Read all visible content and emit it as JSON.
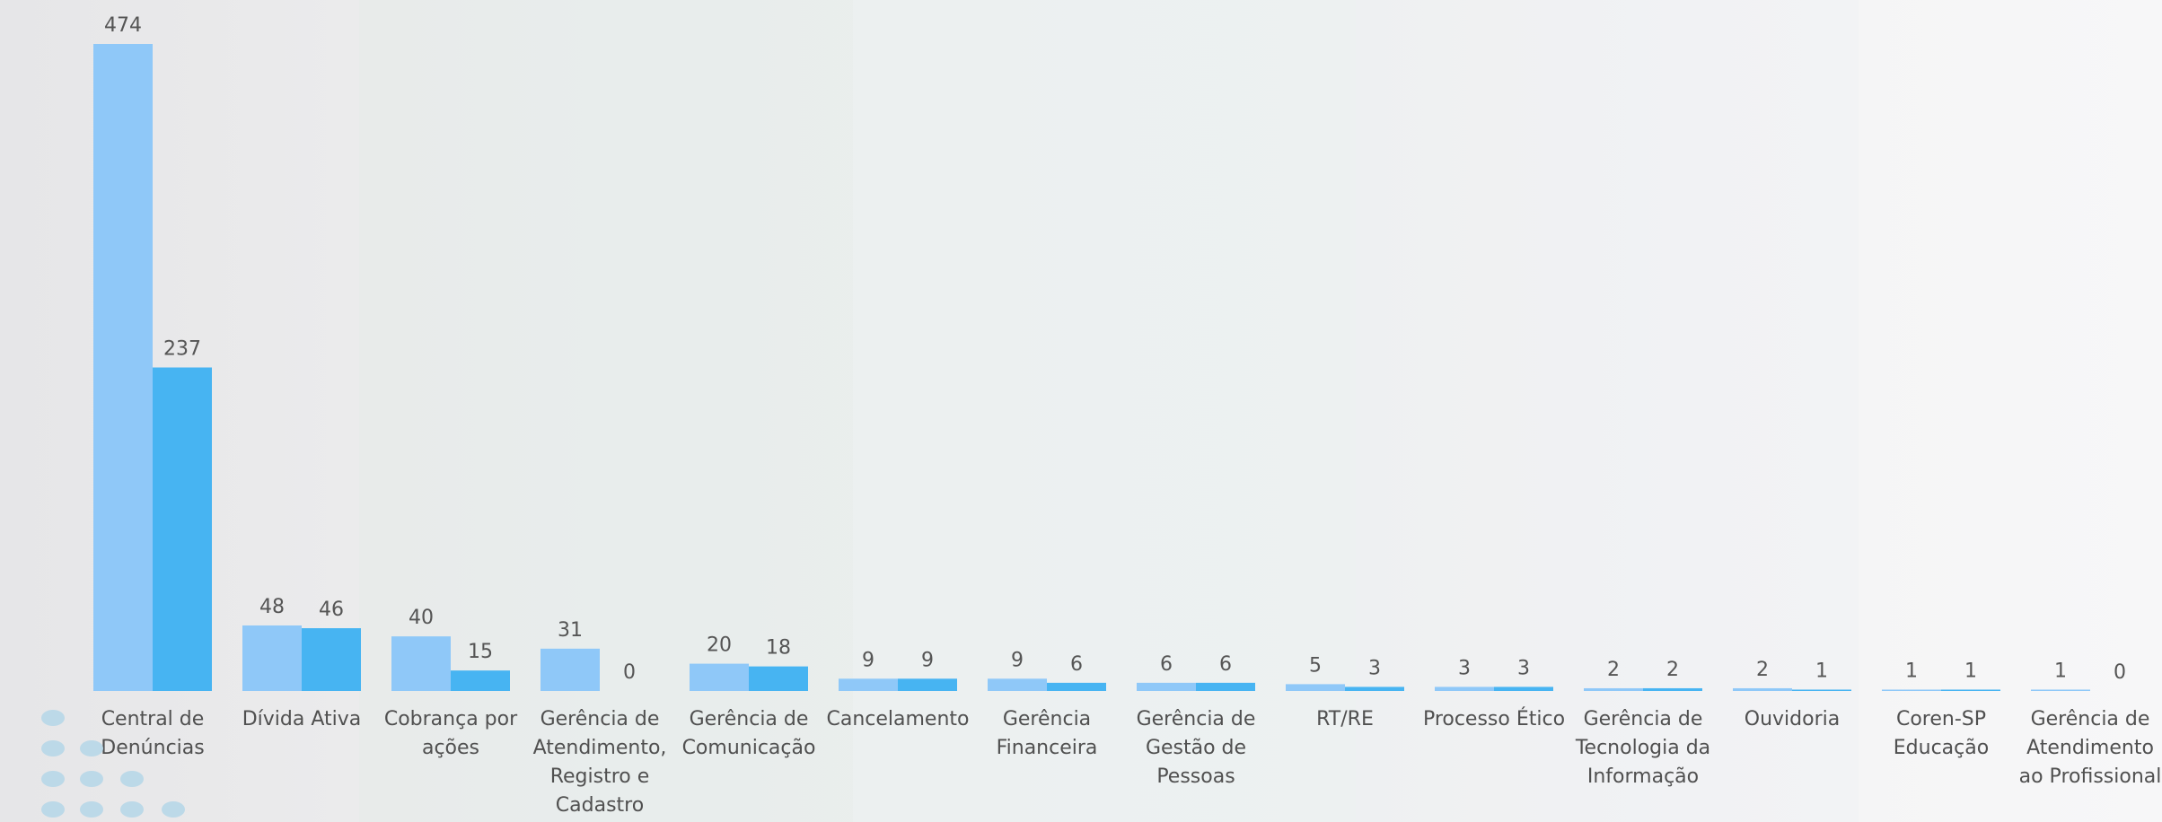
{
  "chart_data": {
    "type": "bar",
    "categories": [
      [
        "Central de",
        "Denúncias"
      ],
      [
        "Dívida Ativa"
      ],
      [
        "Cobrança por",
        "ações"
      ],
      [
        "Gerência de",
        "Atendimento,",
        "Registro e",
        "Cadastro"
      ],
      [
        "Gerência de",
        "Comunicação"
      ],
      [
        "Cancelamento"
      ],
      [
        "Gerência",
        "Financeira"
      ],
      [
        "Gerência de",
        "Gestão de",
        "Pessoas"
      ],
      [
        "RT/RE"
      ],
      [
        "Processo Ético"
      ],
      [
        "Gerência de",
        "Tecnologia da",
        "Informação"
      ],
      [
        "Ouvidoria"
      ],
      [
        "Coren-SP",
        "Educação"
      ],
      [
        "Gerência de",
        "Atendimento",
        "ao Profissional"
      ]
    ],
    "series": [
      {
        "color": "#8fc8f8",
        "values": [
          474,
          48,
          40,
          31,
          20,
          9,
          9,
          6,
          5,
          3,
          2,
          2,
          1,
          1
        ]
      },
      {
        "color": "#47b4f2",
        "values": [
          237,
          46,
          15,
          0,
          18,
          9,
          6,
          6,
          3,
          3,
          2,
          1,
          1,
          0
        ]
      }
    ],
    "ylim": [
      0,
      474
    ],
    "grid": false,
    "legend": "none",
    "data_labels": true
  },
  "decoration": {
    "dot_color": "#bcd9e8",
    "dot_icon": "circle-dots"
  }
}
